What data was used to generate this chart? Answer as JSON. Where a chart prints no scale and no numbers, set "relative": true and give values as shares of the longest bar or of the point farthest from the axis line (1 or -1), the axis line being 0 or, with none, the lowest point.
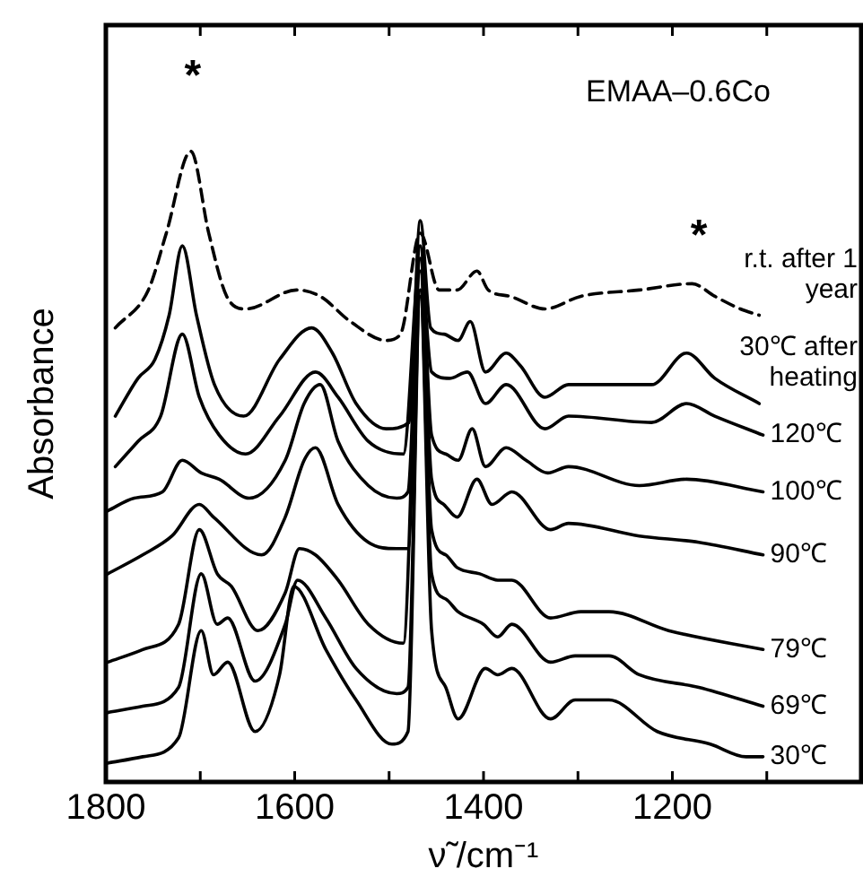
{
  "chart_data": {
    "type": "line",
    "xlabel": "ν̃ /cm⁻¹",
    "ylabel": "Absorbance",
    "relative": true,
    "legend": false,
    "grid": false,
    "marker": "none",
    "xlim": [
      1800,
      1000
    ],
    "xticks": [
      1800,
      {
        "value": 1700,
        "label": null
      },
      1600,
      {
        "value": 1500,
        "label": null
      },
      1400,
      {
        "value": 1300,
        "label": null
      },
      1200,
      {
        "value": 1100,
        "label": null
      }
    ],
    "annotations": [
      "EMAA–0.6Co",
      "*",
      "*"
    ],
    "series": [
      {
        "name": "r.t. after 1 year",
        "color": "#000000",
        "line_style": "dashed",
        "x": [
          1790,
          1755,
          1736,
          1710,
          1691,
          1672,
          1652,
          1598,
          1573,
          1541,
          1503,
          1488,
          1467,
          1447,
          1428,
          1407,
          1395,
          1372,
          1335,
          1297,
          1235,
          1179,
          1155,
          1128,
          1108
        ],
        "values": [
          0.72,
          0.78,
          0.87,
          1.0,
          0.87,
          0.77,
          0.75,
          0.78,
          0.77,
          0.73,
          0.7,
          0.71,
          0.87,
          0.78,
          0.78,
          0.81,
          0.78,
          0.77,
          0.75,
          0.77,
          0.78,
          0.79,
          0.77,
          0.75,
          0.74
        ]
      },
      {
        "name": "30℃ after heating",
        "color": "#000000",
        "x": [
          1790,
          1766,
          1748,
          1733,
          1719,
          1704,
          1685,
          1654,
          1616,
          1582,
          1560,
          1535,
          1503,
          1479,
          1467,
          1456,
          1442,
          1427,
          1414,
          1398,
          1376,
          1361,
          1335,
          1310,
          1222,
          1185,
          1155,
          1108
        ],
        "values": [
          0.58,
          0.64,
          0.67,
          0.74,
          0.85,
          0.74,
          0.63,
          0.58,
          0.67,
          0.72,
          0.68,
          0.6,
          0.56,
          0.57,
          0.89,
          0.72,
          0.71,
          0.7,
          0.73,
          0.65,
          0.68,
          0.66,
          0.61,
          0.63,
          0.63,
          0.68,
          0.64,
          0.6
        ]
      },
      {
        "name": "120℃",
        "color": "#000000",
        "x": [
          1790,
          1766,
          1742,
          1719,
          1701,
          1680,
          1652,
          1616,
          1578,
          1554,
          1522,
          1485,
          1467,
          1455,
          1436,
          1417,
          1398,
          1376,
          1335,
          1310,
          1222,
          1185,
          1155,
          1104
        ],
        "values": [
          0.5,
          0.54,
          0.58,
          0.71,
          0.61,
          0.55,
          0.52,
          0.58,
          0.65,
          0.61,
          0.54,
          0.52,
          0.83,
          0.65,
          0.64,
          0.65,
          0.6,
          0.63,
          0.56,
          0.58,
          0.57,
          0.6,
          0.58,
          0.55
        ]
      },
      {
        "name": "100℃",
        "color": "#000000",
        "x": [
          1798,
          1770,
          1740,
          1719,
          1699,
          1680,
          1648,
          1610,
          1590,
          1573,
          1554,
          1522,
          1492,
          1480,
          1467,
          1455,
          1440,
          1427,
          1412,
          1398,
          1376,
          1355,
          1332,
          1310,
          1235,
          1185,
          1104
        ],
        "values": [
          0.43,
          0.45,
          0.46,
          0.51,
          0.49,
          0.48,
          0.45,
          0.51,
          0.6,
          0.63,
          0.54,
          0.47,
          0.45,
          0.46,
          0.85,
          0.55,
          0.52,
          0.51,
          0.56,
          0.5,
          0.53,
          0.51,
          0.49,
          0.5,
          0.47,
          0.48,
          0.46
        ]
      },
      {
        "name": "90℃",
        "color": "#000000",
        "x": [
          1798,
          1761,
          1730,
          1701,
          1686,
          1635,
          1610,
          1590,
          1578,
          1554,
          1522,
          1492,
          1480,
          1467,
          1455,
          1442,
          1428,
          1407,
          1391,
          1370,
          1329,
          1310,
          1235,
          1172,
          1104
        ],
        "values": [
          0.33,
          0.36,
          0.39,
          0.44,
          0.42,
          0.36,
          0.42,
          0.51,
          0.53,
          0.44,
          0.38,
          0.37,
          0.37,
          0.83,
          0.48,
          0.44,
          0.42,
          0.48,
          0.44,
          0.46,
          0.4,
          0.41,
          0.39,
          0.38,
          0.36
        ]
      },
      {
        "name": "79℃",
        "color": "#000000",
        "x": [
          1798,
          1761,
          1723,
          1701,
          1682,
          1667,
          1639,
          1610,
          1595,
          1578,
          1554,
          1522,
          1485,
          1467,
          1455,
          1440,
          1428,
          1404,
          1385,
          1370,
          1329,
          1297,
          1267,
          1204,
          1104
        ],
        "values": [
          0.19,
          0.21,
          0.25,
          0.4,
          0.33,
          0.31,
          0.24,
          0.3,
          0.37,
          0.36,
          0.32,
          0.25,
          0.22,
          0.81,
          0.4,
          0.36,
          0.34,
          0.33,
          0.32,
          0.32,
          0.26,
          0.27,
          0.27,
          0.24,
          0.21
        ]
      },
      {
        "name": "69℃",
        "color": "#000000",
        "x": [
          1798,
          1761,
          1723,
          1699,
          1682,
          1671,
          1642,
          1610,
          1597,
          1567,
          1535,
          1492,
          1480,
          1467,
          1455,
          1440,
          1427,
          1400,
          1385,
          1370,
          1329,
          1303,
          1267,
          1235,
          1172,
          1104
        ],
        "values": [
          0.11,
          0.12,
          0.15,
          0.33,
          0.25,
          0.26,
          0.16,
          0.25,
          0.32,
          0.26,
          0.18,
          0.14,
          0.15,
          0.78,
          0.33,
          0.29,
          0.27,
          0.25,
          0.23,
          0.25,
          0.19,
          0.2,
          0.2,
          0.17,
          0.15,
          0.12
        ]
      },
      {
        "name": "30℃",
        "color": "#000000",
        "x": [
          1798,
          1761,
          1723,
          1699,
          1686,
          1671,
          1642,
          1616,
          1601,
          1567,
          1535,
          1497,
          1480,
          1467,
          1455,
          1440,
          1427,
          1398,
          1385,
          1370,
          1329,
          1303,
          1267,
          1216,
          1160,
          1122,
          1104
        ],
        "values": [
          0.03,
          0.04,
          0.07,
          0.24,
          0.17,
          0.19,
          0.08,
          0.17,
          0.31,
          0.21,
          0.13,
          0.06,
          0.08,
          0.77,
          0.24,
          0.15,
          0.1,
          0.18,
          0.17,
          0.18,
          0.1,
          0.13,
          0.13,
          0.08,
          0.06,
          0.04,
          0.04
        ]
      }
    ]
  }
}
